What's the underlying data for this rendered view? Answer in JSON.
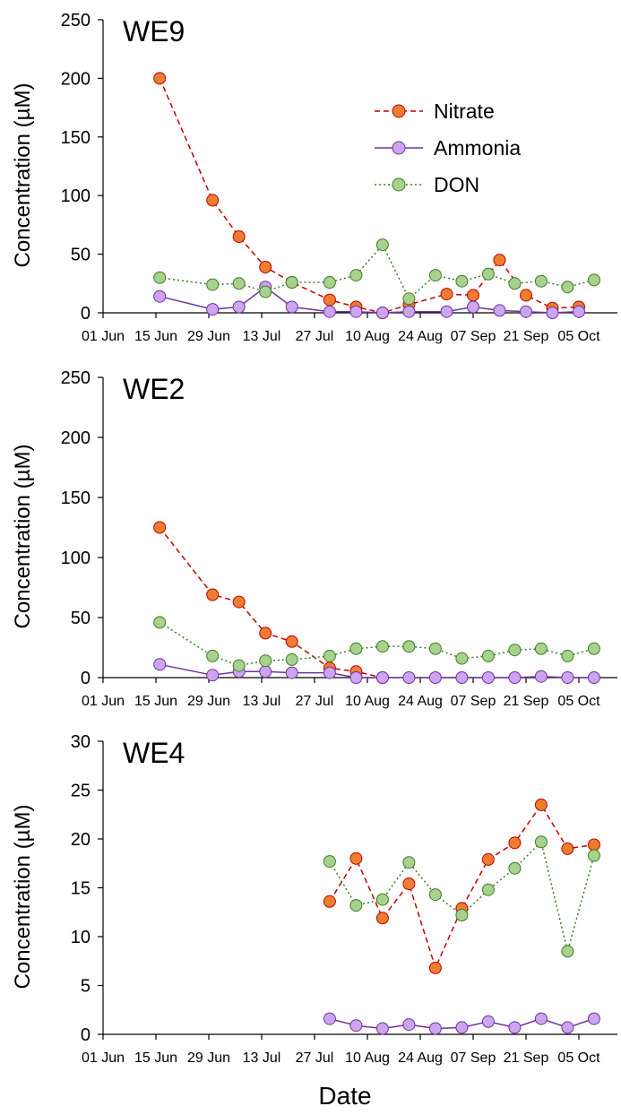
{
  "figure": {
    "xlabel": "Date",
    "x_ticks": [
      "01 Jun",
      "15 Jun",
      "29 Jun",
      "13 Jul",
      "27 Jul",
      "10 Aug",
      "24 Aug",
      "07 Sep",
      "21 Sep",
      "05 Oct"
    ],
    "legend": [
      {
        "name": "Nitrate",
        "color": "#ed7d31",
        "line": "dashed",
        "line_color": "#c00000"
      },
      {
        "name": "Ammonia",
        "color": "#cba6ef",
        "line": "solid",
        "line_color": "#7030a0"
      },
      {
        "name": "DON",
        "color": "#a9d18e",
        "line": "dotted",
        "line_color": "#3a7d22"
      }
    ]
  },
  "chart_data": [
    {
      "type": "line",
      "title": "WE9",
      "ylabel": "Concentration (µM)",
      "ylim": [
        0,
        250
      ],
      "yticks": [
        "0",
        "50",
        "100",
        "150",
        "200",
        "250"
      ],
      "xlabel": "Date",
      "legend_position": "top-right",
      "series": [
        {
          "name": "Nitrate",
          "x": [
            "2018-06-16",
            "2018-06-30",
            "2018-07-07",
            "2018-07-14",
            "2018-07-21",
            "2018-07-31",
            "2018-08-07",
            "2018-08-14",
            "2018-08-21",
            "2018-08-31",
            "2018-09-07",
            "2018-09-14",
            "2018-09-21",
            "2018-09-28",
            "2018-10-05"
          ],
          "values": [
            200,
            96,
            65,
            39,
            26,
            11,
            5,
            0,
            7,
            16,
            15,
            45,
            15,
            4,
            5
          ]
        },
        {
          "name": "Ammonia",
          "x": [
            "2018-06-16",
            "2018-06-30",
            "2018-07-07",
            "2018-07-14",
            "2018-07-21",
            "2018-07-31",
            "2018-08-07",
            "2018-08-14",
            "2018-08-21",
            "2018-08-31",
            "2018-09-07",
            "2018-09-14",
            "2018-09-21",
            "2018-09-28",
            "2018-10-05"
          ],
          "values": [
            14,
            3,
            5,
            22,
            5,
            1,
            1,
            0,
            1,
            1,
            5,
            2,
            1,
            0,
            1
          ]
        },
        {
          "name": "DON",
          "x": [
            "2018-06-16",
            "2018-06-30",
            "2018-07-07",
            "2018-07-14",
            "2018-07-21",
            "2018-07-31",
            "2018-08-07",
            "2018-08-14",
            "2018-08-21",
            "2018-08-28",
            "2018-09-04",
            "2018-09-11",
            "2018-09-18",
            "2018-09-25",
            "2018-10-02",
            "2018-10-09"
          ],
          "values": [
            30,
            24,
            25,
            18,
            26,
            26,
            32,
            58,
            12,
            32,
            27,
            33,
            25,
            27,
            22,
            28
          ]
        }
      ]
    },
    {
      "type": "line",
      "title": "WE2",
      "ylabel": "Concentration (µM)",
      "ylim": [
        0,
        250
      ],
      "yticks": [
        "0",
        "50",
        "100",
        "150",
        "200",
        "250"
      ],
      "xlabel": "Date",
      "legend_position": "none",
      "series": [
        {
          "name": "Nitrate",
          "x": [
            "2018-06-16",
            "2018-06-30",
            "2018-07-07",
            "2018-07-14",
            "2018-07-21",
            "2018-07-31",
            "2018-08-07",
            "2018-08-14"
          ],
          "values": [
            125,
            69,
            63,
            37,
            30,
            8,
            5,
            0
          ]
        },
        {
          "name": "Ammonia",
          "x": [
            "2018-06-16",
            "2018-06-30",
            "2018-07-07",
            "2018-07-14",
            "2018-07-21",
            "2018-07-31",
            "2018-08-07",
            "2018-08-14",
            "2018-08-21",
            "2018-08-28",
            "2018-09-04",
            "2018-09-11",
            "2018-09-18",
            "2018-09-25",
            "2018-10-02",
            "2018-10-09"
          ],
          "values": [
            11,
            2,
            5,
            5,
            4,
            4,
            0,
            0,
            0,
            0,
            0,
            0,
            0,
            1,
            0,
            0
          ]
        },
        {
          "name": "DON",
          "x": [
            "2018-06-16",
            "2018-06-30",
            "2018-07-07",
            "2018-07-14",
            "2018-07-21",
            "2018-07-31",
            "2018-08-07",
            "2018-08-14",
            "2018-08-21",
            "2018-08-28",
            "2018-09-04",
            "2018-09-11",
            "2018-09-18",
            "2018-09-25",
            "2018-10-02",
            "2018-10-09"
          ],
          "values": [
            46,
            18,
            10,
            14,
            15,
            18,
            24,
            26,
            26,
            24,
            16,
            18,
            23,
            24,
            18,
            24
          ]
        }
      ]
    },
    {
      "type": "line",
      "title": "WE4",
      "ylabel": "Concentration (µM)",
      "ylim": [
        0,
        30
      ],
      "yticks": [
        "0",
        "5",
        "10",
        "15",
        "20",
        "25",
        "30"
      ],
      "xlabel": "Date",
      "legend_position": "none",
      "series": [
        {
          "name": "Nitrate",
          "x": [
            "2018-07-31",
            "2018-08-07",
            "2018-08-14",
            "2018-08-21",
            "2018-08-28",
            "2018-09-04",
            "2018-09-11",
            "2018-09-18",
            "2018-09-25",
            "2018-10-02",
            "2018-10-09"
          ],
          "values": [
            13.6,
            18.0,
            11.9,
            15.4,
            6.8,
            12.9,
            17.9,
            19.6,
            23.5,
            19.0,
            19.4
          ]
        },
        {
          "name": "Ammonia",
          "x": [
            "2018-07-31",
            "2018-08-07",
            "2018-08-14",
            "2018-08-21",
            "2018-08-28",
            "2018-09-04",
            "2018-09-11",
            "2018-09-18",
            "2018-09-25",
            "2018-10-02",
            "2018-10-09"
          ],
          "values": [
            1.6,
            0.9,
            0.6,
            1.0,
            0.6,
            0.7,
            1.3,
            0.7,
            1.6,
            0.7,
            1.6
          ]
        },
        {
          "name": "DON",
          "x": [
            "2018-07-31",
            "2018-08-07",
            "2018-08-14",
            "2018-08-21",
            "2018-08-28",
            "2018-09-04",
            "2018-09-11",
            "2018-09-18",
            "2018-09-25",
            "2018-10-02",
            "2018-10-09"
          ],
          "values": [
            17.7,
            13.2,
            13.8,
            17.6,
            14.3,
            12.2,
            14.8,
            17.0,
            19.7,
            8.5,
            18.3
          ]
        }
      ]
    }
  ]
}
